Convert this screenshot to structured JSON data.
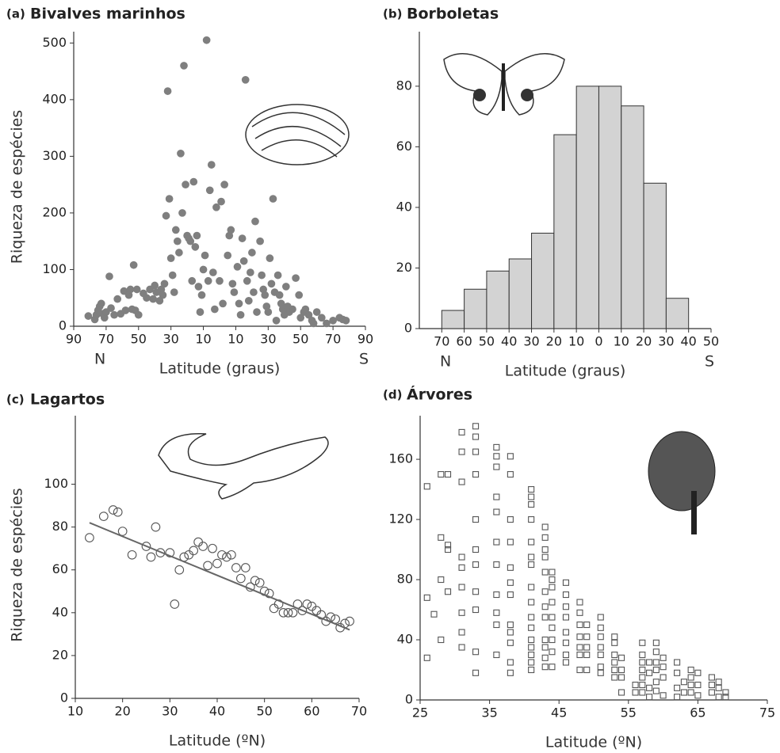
{
  "chart_data": [
    {
      "type": "scatter",
      "label": "(a)",
      "title": "Bivalves marinhos",
      "ylabel": "Riqueza de espécies",
      "xlabel": "Latitude (graus)",
      "x_start_label": "N",
      "x_end_label": "S",
      "marker": "circle",
      "filled": true,
      "color": "#7f7f7f",
      "xlim": [
        -90,
        90
      ],
      "ylim": [
        0,
        520
      ],
      "xticks": [
        {
          "value": -90,
          "label": "90"
        },
        {
          "value": -70,
          "label": "70"
        },
        {
          "value": -50,
          "label": "50"
        },
        {
          "value": -30,
          "label": "30"
        },
        {
          "value": -10,
          "label": "10"
        },
        10,
        30,
        50,
        70,
        90
      ],
      "yticks": [
        0,
        100,
        200,
        300,
        400,
        500
      ],
      "x": [
        -81,
        -77,
        -76,
        -75,
        -74,
        -73,
        -72,
        -71,
        -70,
        -68,
        -67,
        -65,
        -63,
        -61,
        -59,
        -58,
        -56,
        -55,
        -54,
        -53,
        -52,
        -51,
        -50,
        -47,
        -45,
        -43,
        -41,
        -40,
        -39,
        -37,
        -36,
        -35,
        -34,
        -33,
        -32,
        -31,
        -30,
        -29,
        -28,
        -27,
        -26,
        -25,
        -24,
        -23,
        -22,
        -21,
        -20,
        -19,
        -18,
        -17,
        -16,
        -15,
        -14,
        -13,
        -12,
        -11,
        -10,
        -9,
        -8,
        -7,
        -6,
        -5,
        -4,
        -3,
        -2,
        0,
        1,
        2,
        3,
        5,
        6,
        7,
        8,
        9,
        11,
        12,
        13,
        14,
        15,
        16,
        17,
        18,
        19,
        20,
        21,
        22,
        23,
        25,
        26,
        27,
        28,
        29,
        30,
        31,
        32,
        33,
        34,
        35,
        36,
        37,
        38,
        39,
        40,
        41,
        42,
        43,
        45,
        47,
        49,
        50,
        52,
        53,
        55,
        57,
        58,
        60,
        63,
        66,
        70,
        74,
        76,
        78
      ],
      "y": [
        18,
        12,
        20,
        28,
        35,
        40,
        22,
        15,
        25,
        88,
        32,
        20,
        48,
        22,
        62,
        28,
        55,
        65,
        30,
        108,
        28,
        65,
        20,
        58,
        50,
        65,
        48,
        72,
        60,
        45,
        65,
        55,
        75,
        195,
        415,
        225,
        120,
        90,
        60,
        170,
        150,
        130,
        305,
        200,
        460,
        250,
        160,
        155,
        150,
        80,
        255,
        140,
        160,
        70,
        25,
        55,
        100,
        125,
        505,
        80,
        240,
        285,
        95,
        30,
        210,
        80,
        220,
        40,
        250,
        125,
        160,
        170,
        75,
        60,
        105,
        40,
        20,
        155,
        115,
        435,
        80,
        45,
        95,
        130,
        60,
        185,
        25,
        150,
        90,
        65,
        55,
        35,
        25,
        120,
        75,
        225,
        60,
        10,
        90,
        55,
        40,
        30,
        20,
        70,
        35,
        25,
        30,
        85,
        55,
        15,
        25,
        30,
        20,
        10,
        5,
        25,
        15,
        5,
        10,
        15,
        12,
        10
      ]
    },
    {
      "type": "histogram",
      "label": "(b)",
      "title": "Borboletas",
      "xlabel": "Latitude (graus)",
      "x_start_label": "N",
      "x_end_label": "S",
      "color": "#d3d3d3",
      "xlim": [
        -80,
        50
      ],
      "ylim": [
        0,
        98
      ],
      "xticks": [
        {
          "value": -70,
          "label": "70"
        },
        {
          "value": -60,
          "label": "60"
        },
        {
          "value": -50,
          "label": "50"
        },
        {
          "value": -40,
          "label": "40"
        },
        {
          "value": -30,
          "label": "30"
        },
        {
          "value": -20,
          "label": "20"
        },
        {
          "value": -10,
          "label": "10"
        },
        0,
        10,
        20,
        30,
        40,
        50
      ],
      "yticks": [
        0,
        20,
        40,
        60,
        80
      ],
      "bins": [
        -70,
        -60,
        -50,
        -40,
        -30,
        -20,
        -10,
        0,
        10,
        20,
        30,
        40
      ],
      "values": [
        6,
        13,
        19,
        23,
        31.5,
        64,
        80,
        80,
        73.5,
        48,
        10
      ]
    },
    {
      "type": "scatter",
      "label": "(c)",
      "title": "Lagartos",
      "ylabel": "Riqueza de espécies",
      "xlabel": "Latitude (ºN)",
      "marker": "circle",
      "filled": false,
      "color": "#555555",
      "xlim": [
        10,
        70
      ],
      "ylim": [
        0,
        132
      ],
      "xticks": [
        10,
        20,
        30,
        40,
        50,
        60,
        70
      ],
      "yticks": [
        0,
        20,
        40,
        60,
        80,
        100
      ],
      "x": [
        13,
        16,
        18,
        19,
        20,
        22,
        25,
        26,
        27,
        28,
        30,
        31,
        32,
        33,
        34,
        35,
        36,
        37,
        38,
        39,
        40,
        41,
        42,
        43,
        44,
        45,
        46,
        47,
        48,
        49,
        50,
        51,
        52,
        53,
        54,
        55,
        56,
        57,
        58,
        59,
        60,
        61,
        62,
        63,
        64,
        65,
        66,
        67,
        68
      ],
      "y": [
        75,
        85,
        88,
        87,
        78,
        67,
        71,
        66,
        80,
        68,
        68,
        44,
        60,
        66,
        67,
        69,
        73,
        71,
        62,
        70,
        63,
        67,
        66,
        67,
        61,
        56,
        61,
        52,
        55,
        54,
        50,
        49,
        42,
        44,
        40,
        40,
        40,
        44,
        41,
        44,
        43,
        41,
        39,
        36,
        38,
        37,
        33,
        35,
        36
      ],
      "fit_line": {
        "x": [
          13,
          68
        ],
        "y": [
          82,
          32
        ]
      }
    },
    {
      "type": "scatter",
      "label": "(d)",
      "title": "Árvores",
      "xlabel": "Latitude (ºN)",
      "marker": "square",
      "filled": false,
      "color": "#555555",
      "xlim": [
        25,
        75
      ],
      "ylim": [
        0,
        189
      ],
      "xticks": [
        25,
        35,
        45,
        55,
        65,
        75
      ],
      "yticks": [
        0,
        40,
        80,
        120,
        160
      ],
      "x": [
        26,
        26,
        26,
        27,
        28,
        28,
        28,
        28,
        29,
        29,
        29,
        29,
        31,
        31,
        31,
        31,
        31,
        31,
        31,
        31,
        31,
        33,
        33,
        33,
        33,
        33,
        33,
        33,
        33,
        33,
        33,
        33,
        36,
        36,
        36,
        36,
        36,
        36,
        36,
        36,
        36,
        36,
        36,
        38,
        38,
        38,
        38,
        38,
        38,
        38,
        38,
        38,
        38,
        38,
        38,
        41,
        41,
        41,
        41,
        41,
        41,
        41,
        41,
        41,
        41,
        41,
        41,
        41,
        41,
        41,
        41,
        43,
        43,
        43,
        43,
        43,
        43,
        43,
        43,
        43,
        43,
        43,
        43,
        44,
        44,
        44,
        44,
        44,
        44,
        44,
        44,
        44,
        46,
        46,
        46,
        46,
        46,
        46,
        46,
        46,
        48,
        48,
        48,
        48,
        48,
        48,
        48,
        49,
        49,
        49,
        49,
        49,
        51,
        51,
        51,
        51,
        51,
        51,
        51,
        53,
        53,
        53,
        53,
        53,
        53,
        54,
        54,
        54,
        54,
        56,
        56,
        57,
        57,
        57,
        57,
        57,
        57,
        57,
        58,
        58,
        58,
        58,
        59,
        59,
        59,
        59,
        59,
        59,
        60,
        60,
        60,
        60,
        62,
        62,
        62,
        62,
        63,
        63,
        64,
        64,
        64,
        64,
        65,
        65,
        65,
        67,
        67,
        67,
        68,
        68,
        68,
        69,
        69
      ],
      "y": [
        142,
        68,
        28,
        57,
        150,
        108,
        80,
        40,
        150,
        103,
        100,
        72,
        178,
        165,
        145,
        95,
        88,
        75,
        58,
        45,
        35,
        182,
        175,
        165,
        150,
        120,
        100,
        90,
        72,
        60,
        32,
        18,
        168,
        162,
        155,
        135,
        125,
        105,
        90,
        70,
        58,
        50,
        30,
        162,
        150,
        120,
        105,
        88,
        78,
        70,
        50,
        45,
        38,
        25,
        18,
        140,
        135,
        130,
        120,
        105,
        95,
        90,
        75,
        65,
        55,
        48,
        40,
        35,
        30,
        25,
        20,
        115,
        108,
        100,
        95,
        85,
        72,
        62,
        55,
        40,
        35,
        28,
        22,
        85,
        80,
        75,
        65,
        55,
        48,
        40,
        32,
        22,
        78,
        70,
        62,
        55,
        45,
        38,
        30,
        25,
        65,
        58,
        50,
        42,
        35,
        30,
        20,
        50,
        42,
        35,
        30,
        20,
        55,
        48,
        42,
        35,
        30,
        22,
        18,
        42,
        38,
        30,
        25,
        20,
        15,
        28,
        20,
        15,
        5,
        5,
        10,
        38,
        30,
        25,
        20,
        15,
        10,
        5,
        25,
        18,
        8,
        2,
        38,
        32,
        25,
        20,
        12,
        6,
        28,
        22,
        15,
        3,
        25,
        18,
        8,
        2,
        12,
        5,
        20,
        15,
        10,
        5,
        18,
        10,
        3,
        15,
        10,
        5,
        12,
        8,
        2,
        5,
        2
      ]
    }
  ]
}
